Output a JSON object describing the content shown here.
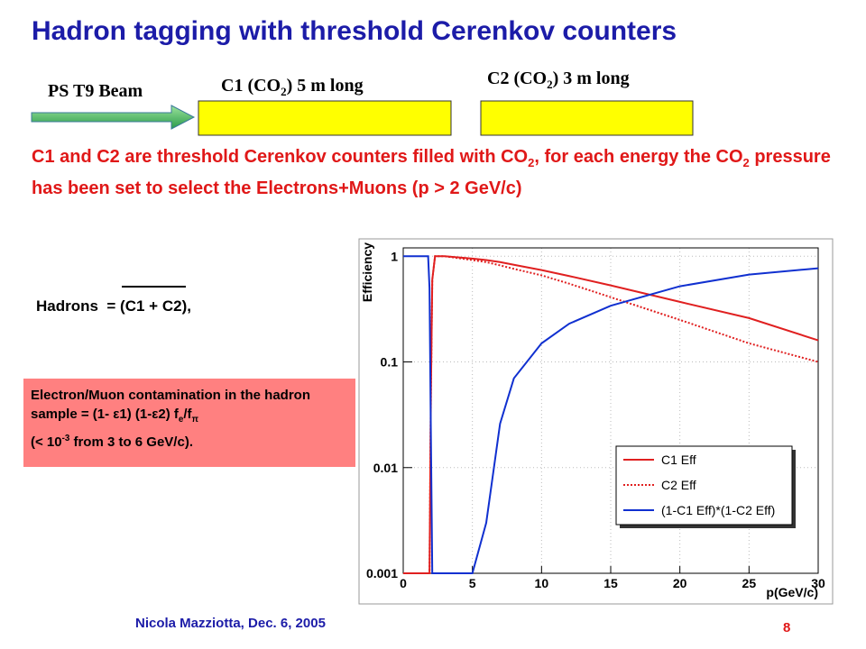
{
  "title": "Hadron tagging with threshold Cerenkov counters",
  "beam": {
    "label": "PS T9 Beam",
    "c1": [
      "C1 (CO",
      "2",
      ") 5 m long"
    ],
    "c2": [
      "C2 (CO",
      "2",
      ") 3 m long"
    ]
  },
  "description": [
    "C1 and C2 are threshold Cerenkov counters filled with CO",
    "2",
    ",  for each energy the CO",
    "2",
    " pressure has been set to select the Electrons+Muons (p > 2 GeV/c)"
  ],
  "formula": {
    "lhs": "Hadrons  = (",
    "over": "C1 + C2",
    "rhs": "),"
  },
  "contamination": [
    "Electron/Muon contamination in the hadron sample = (1- ",
    "ε",
    "1) (1-",
    "ε",
    "2) f",
    "e",
    "/f",
    "π",
    " (< 10",
    "-3",
    " from 3 to 6 GeV/c)."
  ],
  "footer": {
    "author": "Nicola Mazziotta, Dec. 6, 2005",
    "page": "8"
  },
  "chart_data": {
    "type": "line",
    "ylabel": "Efficiency",
    "xlabel": "p(GeV/c)",
    "x": [
      0,
      1,
      1.8,
      1.9,
      2.0,
      2.1,
      2.3,
      3,
      5,
      6,
      7,
      8,
      10,
      12,
      15,
      20,
      25,
      30
    ],
    "series": [
      {
        "name": "C1 Eff",
        "color": "#e02020",
        "line_style": "solid",
        "values": [
          0.001,
          0.001,
          0.001,
          0.001,
          0.05,
          0.6,
          1,
          1,
          0.95,
          0.92,
          0.88,
          0.83,
          0.74,
          0.65,
          0.53,
          0.37,
          0.26,
          0.16
        ]
      },
      {
        "name": "C2 Eff",
        "color": "#e02020",
        "line_style": "dotted",
        "values": [
          0.001,
          0.001,
          0.001,
          0.001,
          0.05,
          0.6,
          1,
          1,
          0.92,
          0.88,
          0.82,
          0.76,
          0.66,
          0.55,
          0.41,
          0.25,
          0.15,
          0.1
        ]
      },
      {
        "name": "(1-C1 Eff)*(1-C2 Eff)",
        "color": "#1030d0",
        "line_style": "solid",
        "values": [
          1,
          1,
          1,
          0.5,
          0.02,
          0.001,
          0.001,
          0.001,
          0.001,
          0.003,
          0.026,
          0.07,
          0.15,
          0.23,
          0.34,
          0.52,
          0.67,
          0.77
        ]
      }
    ],
    "xlim": [
      0,
      30
    ],
    "xticks": [
      0,
      5,
      10,
      15,
      20,
      25,
      30
    ],
    "ylim": [
      0.001,
      1.2
    ],
    "yticks": [
      0.001,
      0.01,
      0.1,
      1
    ],
    "log_y": true,
    "grid": true,
    "legend": "lower right"
  }
}
